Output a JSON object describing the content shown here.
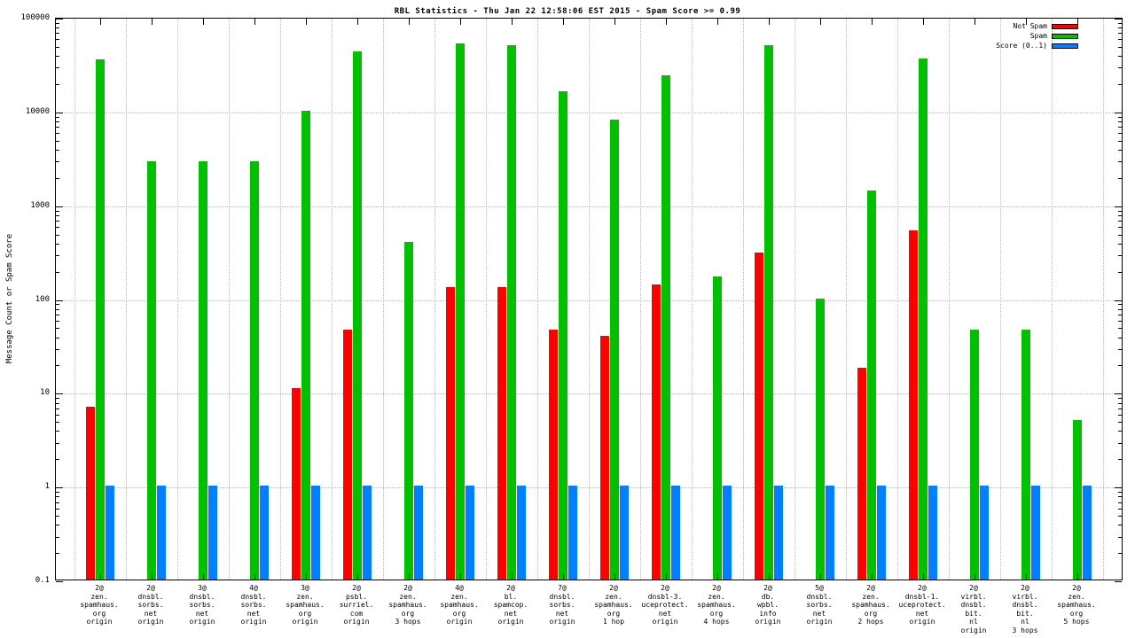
{
  "title": "RBL Statistics - Thu Jan 22 12:58:06 EST 2015 - Spam Score >= 0.99",
  "ylabel": "Message Count or Spam Score",
  "chart_data": {
    "type": "bar",
    "scale": "log",
    "ylim": [
      0.1,
      100000
    ],
    "yticks": [
      100000,
      10000,
      1000,
      100,
      10,
      1,
      0.1
    ],
    "grid": true,
    "legend_position": "top-right",
    "categories": [
      [
        "2@",
        "zen.",
        "spamhaus.",
        "org",
        "origin"
      ],
      [
        "2@",
        "dnsbl.",
        "sorbs.",
        "net",
        "origin"
      ],
      [
        "3@",
        "dnsbl.",
        "sorbs.",
        "net",
        "origin"
      ],
      [
        "4@",
        "dnsbl.",
        "sorbs.",
        "net",
        "origin"
      ],
      [
        "3@",
        "zen.",
        "spamhaus.",
        "org",
        "origin"
      ],
      [
        "2@",
        "psbl.",
        "surriel.",
        "com",
        "origin"
      ],
      [
        "2@",
        "zen.",
        "spamhaus.",
        "org",
        "3 hops"
      ],
      [
        "4@",
        "zen.",
        "spamhaus.",
        "org",
        "origin"
      ],
      [
        "2@",
        "bl.",
        "spamcop.",
        "net",
        "origin"
      ],
      [
        "7@",
        "dnsbl.",
        "sorbs.",
        "net",
        "origin"
      ],
      [
        "2@",
        "zen.",
        "spamhaus.",
        "org",
        "1 hop"
      ],
      [
        "2@",
        "dnsbl-3.",
        "uceprotect.",
        "net",
        "origin"
      ],
      [
        "2@",
        "zen.",
        "spamhaus.",
        "org",
        "4 hops"
      ],
      [
        "2@",
        "db.",
        "wpbl.",
        "info",
        "origin"
      ],
      [
        "5@",
        "dnsbl.",
        "sorbs.",
        "net",
        "origin"
      ],
      [
        "2@",
        "zen.",
        "spamhaus.",
        "org",
        "2 hops"
      ],
      [
        "2@",
        "dnsbl-1.",
        "uceprotect.",
        "net",
        "origin"
      ],
      [
        "2@",
        "virbl.",
        "dnsbl.",
        "bit.",
        "nl",
        "origin"
      ],
      [
        "2@",
        "virbl.",
        "dnsbl.",
        "bit.",
        "nl",
        "3 hops"
      ],
      [
        "2@",
        "zen.",
        "spamhaus.",
        "org",
        "5 hops"
      ]
    ],
    "series": [
      {
        "name": "Not Spam",
        "color": "#ff0000",
        "values": [
          7,
          0,
          0,
          0,
          11,
          46,
          0,
          130,
          130,
          46,
          40,
          140,
          0,
          310,
          0,
          18,
          530,
          0,
          0,
          0
        ]
      },
      {
        "name": "Spam",
        "color": "#00c000",
        "values": [
          35000,
          2900,
          2900,
          2900,
          10000,
          43000,
          400,
          52000,
          50000,
          16000,
          8000,
          24000,
          170,
          50000,
          100,
          1400,
          36000,
          46,
          46,
          5
        ]
      },
      {
        "name": "Score (0..1)",
        "color": "#0080ff",
        "values": [
          1,
          1,
          1,
          1,
          1,
          1,
          1,
          1,
          1,
          1,
          1,
          1,
          1,
          1,
          1,
          1,
          1,
          1,
          1,
          1
        ]
      }
    ]
  }
}
